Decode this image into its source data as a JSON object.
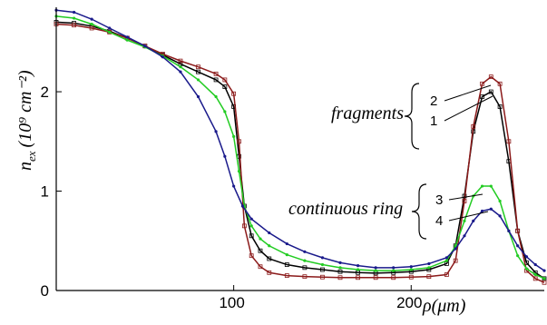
{
  "chart_data": {
    "type": "line",
    "title": "",
    "xlabel": "ρ(μm)",
    "ylabel_main": "n",
    "ylabel_sub": "ex",
    "ylabel_unit": "(10⁹ cm⁻²)",
    "xlim": [
      0,
      275
    ],
    "ylim": [
      0,
      2.85
    ],
    "x_ticks": [
      100,
      200
    ],
    "y_ticks": [
      0,
      1,
      2
    ],
    "grid": false,
    "legend": "none",
    "series": [
      {
        "name": "1",
        "color": "#000000",
        "marker": "square",
        "points": [
          [
            0,
            2.7
          ],
          [
            10,
            2.69
          ],
          [
            20,
            2.66
          ],
          [
            30,
            2.61
          ],
          [
            40,
            2.54
          ],
          [
            50,
            2.46
          ],
          [
            60,
            2.37
          ],
          [
            70,
            2.28
          ],
          [
            80,
            2.2
          ],
          [
            90,
            2.12
          ],
          [
            95,
            2.05
          ],
          [
            100,
            1.85
          ],
          [
            103,
            1.35
          ],
          [
            106,
            0.85
          ],
          [
            110,
            0.55
          ],
          [
            115,
            0.4
          ],
          [
            120,
            0.32
          ],
          [
            130,
            0.26
          ],
          [
            140,
            0.23
          ],
          [
            150,
            0.21
          ],
          [
            160,
            0.19
          ],
          [
            170,
            0.18
          ],
          [
            180,
            0.175
          ],
          [
            190,
            0.18
          ],
          [
            200,
            0.19
          ],
          [
            210,
            0.21
          ],
          [
            220,
            0.27
          ],
          [
            225,
            0.45
          ],
          [
            230,
            0.95
          ],
          [
            235,
            1.6
          ],
          [
            240,
            1.95
          ],
          [
            245,
            2.0
          ],
          [
            250,
            1.85
          ],
          [
            255,
            1.3
          ],
          [
            260,
            0.6
          ],
          [
            265,
            0.28
          ],
          [
            270,
            0.18
          ],
          [
            275,
            0.12
          ]
        ]
      },
      {
        "name": "2",
        "color": "#8b1a1a",
        "marker": "square",
        "points": [
          [
            0,
            2.68
          ],
          [
            10,
            2.67
          ],
          [
            20,
            2.64
          ],
          [
            30,
            2.6
          ],
          [
            40,
            2.54
          ],
          [
            50,
            2.46
          ],
          [
            60,
            2.38
          ],
          [
            70,
            2.31
          ],
          [
            80,
            2.25
          ],
          [
            90,
            2.18
          ],
          [
            95,
            2.12
          ],
          [
            100,
            1.98
          ],
          [
            103,
            1.5
          ],
          [
            106,
            0.65
          ],
          [
            110,
            0.35
          ],
          [
            115,
            0.24
          ],
          [
            120,
            0.18
          ],
          [
            130,
            0.15
          ],
          [
            140,
            0.14
          ],
          [
            150,
            0.135
          ],
          [
            160,
            0.13
          ],
          [
            170,
            0.13
          ],
          [
            180,
            0.13
          ],
          [
            190,
            0.13
          ],
          [
            200,
            0.135
          ],
          [
            210,
            0.14
          ],
          [
            220,
            0.16
          ],
          [
            225,
            0.3
          ],
          [
            230,
            0.9
          ],
          [
            235,
            1.65
          ],
          [
            240,
            2.08
          ],
          [
            245,
            2.15
          ],
          [
            250,
            2.08
          ],
          [
            255,
            1.5
          ],
          [
            260,
            0.6
          ],
          [
            265,
            0.2
          ],
          [
            270,
            0.12
          ],
          [
            275,
            0.08
          ]
        ]
      },
      {
        "name": "3",
        "color": "#22cc22",
        "marker": "dot",
        "points": [
          [
            0,
            2.76
          ],
          [
            10,
            2.74
          ],
          [
            20,
            2.68
          ],
          [
            30,
            2.6
          ],
          [
            40,
            2.52
          ],
          [
            50,
            2.45
          ],
          [
            60,
            2.36
          ],
          [
            70,
            2.25
          ],
          [
            80,
            2.12
          ],
          [
            90,
            1.95
          ],
          [
            95,
            1.8
          ],
          [
            100,
            1.55
          ],
          [
            103,
            1.2
          ],
          [
            106,
            0.85
          ],
          [
            110,
            0.65
          ],
          [
            115,
            0.52
          ],
          [
            120,
            0.45
          ],
          [
            130,
            0.36
          ],
          [
            140,
            0.3
          ],
          [
            150,
            0.26
          ],
          [
            160,
            0.23
          ],
          [
            170,
            0.21
          ],
          [
            180,
            0.2
          ],
          [
            190,
            0.2
          ],
          [
            200,
            0.21
          ],
          [
            210,
            0.23
          ],
          [
            220,
            0.3
          ],
          [
            225,
            0.45
          ],
          [
            230,
            0.7
          ],
          [
            235,
            0.95
          ],
          [
            240,
            1.05
          ],
          [
            245,
            1.05
          ],
          [
            250,
            0.9
          ],
          [
            255,
            0.6
          ],
          [
            260,
            0.35
          ],
          [
            265,
            0.22
          ],
          [
            270,
            0.16
          ],
          [
            275,
            0.12
          ]
        ]
      },
      {
        "name": "4",
        "color": "#1a1a8b",
        "marker": "dot",
        "points": [
          [
            0,
            2.82
          ],
          [
            10,
            2.8
          ],
          [
            20,
            2.73
          ],
          [
            30,
            2.64
          ],
          [
            40,
            2.55
          ],
          [
            50,
            2.46
          ],
          [
            60,
            2.35
          ],
          [
            70,
            2.2
          ],
          [
            80,
            1.95
          ],
          [
            90,
            1.6
          ],
          [
            95,
            1.35
          ],
          [
            100,
            1.05
          ],
          [
            105,
            0.85
          ],
          [
            110,
            0.72
          ],
          [
            120,
            0.58
          ],
          [
            130,
            0.47
          ],
          [
            140,
            0.39
          ],
          [
            150,
            0.33
          ],
          [
            160,
            0.28
          ],
          [
            170,
            0.25
          ],
          [
            180,
            0.23
          ],
          [
            190,
            0.23
          ],
          [
            200,
            0.24
          ],
          [
            210,
            0.27
          ],
          [
            220,
            0.33
          ],
          [
            225,
            0.42
          ],
          [
            230,
            0.55
          ],
          [
            235,
            0.7
          ],
          [
            240,
            0.8
          ],
          [
            245,
            0.82
          ],
          [
            250,
            0.75
          ],
          [
            255,
            0.6
          ],
          [
            260,
            0.45
          ],
          [
            265,
            0.34
          ],
          [
            270,
            0.26
          ],
          [
            275,
            0.2
          ]
        ]
      }
    ],
    "annotations": {
      "fragments": "fragments",
      "continuous_ring": "continuous ring",
      "labels": [
        "2",
        "1",
        "3",
        "4"
      ]
    }
  }
}
